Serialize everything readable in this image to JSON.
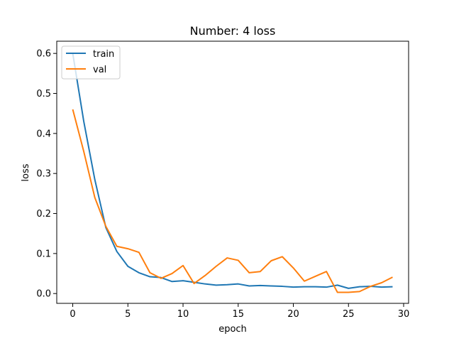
{
  "chart_data": {
    "type": "line",
    "title": "Number: 4 loss",
    "xlabel": "epoch",
    "ylabel": "loss",
    "xlim": [
      -1.45,
      30.45
    ],
    "ylim": [
      -0.0245,
      0.6305
    ],
    "xticks": [
      0,
      5,
      10,
      15,
      20,
      25,
      30
    ],
    "yticks": [
      0.0,
      0.1,
      0.2,
      0.3,
      0.4,
      0.5,
      0.6
    ],
    "grid": false,
    "legend_position": "top-left",
    "x": [
      0,
      1,
      2,
      3,
      4,
      5,
      6,
      7,
      8,
      9,
      10,
      11,
      12,
      13,
      14,
      15,
      16,
      17,
      18,
      19,
      20,
      21,
      22,
      23,
      24,
      25,
      26,
      27,
      28,
      29
    ],
    "series": [
      {
        "name": "train",
        "color": "#1f77b4",
        "values": [
          0.6,
          0.43,
          0.285,
          0.165,
          0.105,
          0.068,
          0.052,
          0.042,
          0.04,
          0.03,
          0.032,
          0.028,
          0.024,
          0.021,
          0.022,
          0.024,
          0.019,
          0.02,
          0.019,
          0.018,
          0.016,
          0.017,
          0.017,
          0.016,
          0.021,
          0.013,
          0.017,
          0.018,
          0.016,
          0.017
        ]
      },
      {
        "name": "val",
        "color": "#ff7f0e",
        "values": [
          0.46,
          0.355,
          0.24,
          0.168,
          0.118,
          0.112,
          0.103,
          0.052,
          0.038,
          0.05,
          0.07,
          0.025,
          0.045,
          0.068,
          0.089,
          0.083,
          0.052,
          0.055,
          0.082,
          0.092,
          0.064,
          0.031,
          0.043,
          0.055,
          0.003,
          0.003,
          0.005,
          0.018,
          0.027,
          0.041
        ]
      }
    ]
  }
}
